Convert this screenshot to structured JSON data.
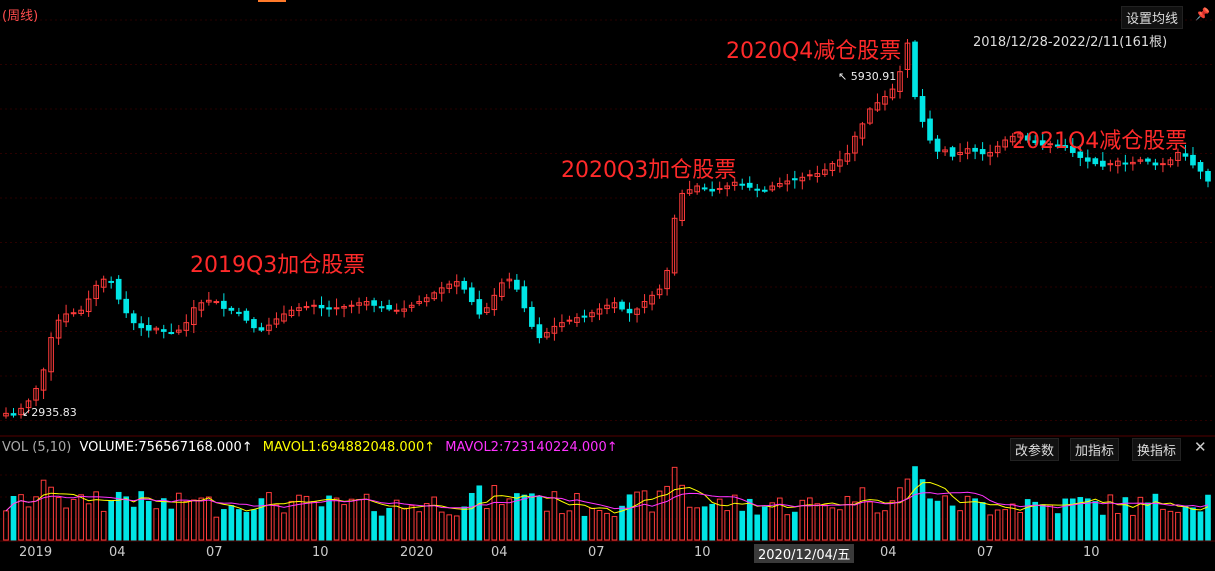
{
  "header": {
    "period": "(周线)",
    "set_ma_button": "设置均线",
    "date_range": "2018/12/28-2022/2/11(161根)",
    "pin_icon": "pin-icon"
  },
  "volume_header": {
    "indicator": "VOL (5,10)",
    "volume": "VOLUME:756567168.000",
    "mavol1": "MAVOL1:694882048.000",
    "mavol2": "MAVOL2:723140224.000",
    "arrow": "↑",
    "buttons": [
      "改参数",
      "加指标",
      "换指标"
    ],
    "close_icon": "close-icon"
  },
  "annotations": [
    "2019Q3加仓股票",
    "2020Q3加仓股票",
    "2020Q4减仓股票",
    "2021Q4减仓股票"
  ],
  "extremes": {
    "high": "5930.91",
    "low": "2935.83"
  },
  "x_ticks": [
    "2019",
    "04",
    "07",
    "10",
    "2020",
    "04",
    "07",
    "10",
    "2020/12/04/五",
    "04",
    "07",
    "10"
  ],
  "colors": {
    "up": "#ff3b3b",
    "down": "#00e5e5",
    "mavol1": "#ffff00",
    "mavol2": "#ff33ff",
    "grid": "#2a0000",
    "annotation": "#ff2a2a"
  },
  "chart_data": {
    "type": "candlestick",
    "title": "",
    "period": "weekly",
    "range": "2018/12/28-2022/2/11",
    "bars": 161,
    "price_ylim": [
      2800,
      6100
    ],
    "volume_ylim": [
      0,
      1650000000
    ],
    "price_path": [
      2950,
      2936,
      2990,
      3050,
      3150,
      3300,
      3560,
      3700,
      3750,
      3760,
      3780,
      3870,
      3980,
      4030,
      4010,
      3870,
      3760,
      3680,
      3640,
      3620,
      3635,
      3610,
      3600,
      3620,
      3680,
      3800,
      3840,
      3860,
      3850,
      3795,
      3780,
      3760,
      3700,
      3640,
      3620,
      3660,
      3710,
      3750,
      3780,
      3800,
      3810,
      3820,
      3800,
      3790,
      3800,
      3810,
      3820,
      3840,
      3850,
      3820,
      3800,
      3790,
      3780,
      3790,
      3820,
      3850,
      3880,
      3920,
      3960,
      3990,
      4010,
      3950,
      3850,
      3750,
      3800,
      3900,
      4000,
      4030,
      3950,
      3800,
      3650,
      3560,
      3600,
      3650,
      3680,
      3700,
      3720,
      3730,
      3760,
      3790,
      3820,
      3840,
      3790,
      3760,
      3790,
      3850,
      3900,
      3950,
      4100,
      4520,
      4720,
      4750,
      4780,
      4760,
      4740,
      4760,
      4780,
      4810,
      4790,
      4770,
      4750,
      4740,
      4780,
      4800,
      4820,
      4830,
      4850,
      4870,
      4880,
      4910,
      4960,
      4990,
      5040,
      5180,
      5280,
      5400,
      5450,
      5500,
      5560,
      5700,
      5930,
      5500,
      5300,
      5150,
      5060,
      5070,
      5020,
      5050,
      5080,
      5060,
      5040,
      5050,
      5100,
      5150,
      5180,
      5200,
      5150,
      5130,
      5110,
      5120,
      5100,
      5090,
      5050,
      5010,
      4980,
      4960,
      4940,
      4960,
      4980,
      4960,
      4970,
      4990,
      4980,
      4950,
      4960,
      4990,
      5050,
      5020,
      4950,
      4900,
      4820
    ],
    "current": {
      "volume": 756567168,
      "mavol1": 694882048,
      "mavol2": 723140224
    },
    "x_tick_labels": [
      "2019",
      "04",
      "07",
      "10",
      "2020",
      "04",
      "07",
      "10",
      "2020/12/04/五",
      "04",
      "07",
      "10"
    ]
  }
}
